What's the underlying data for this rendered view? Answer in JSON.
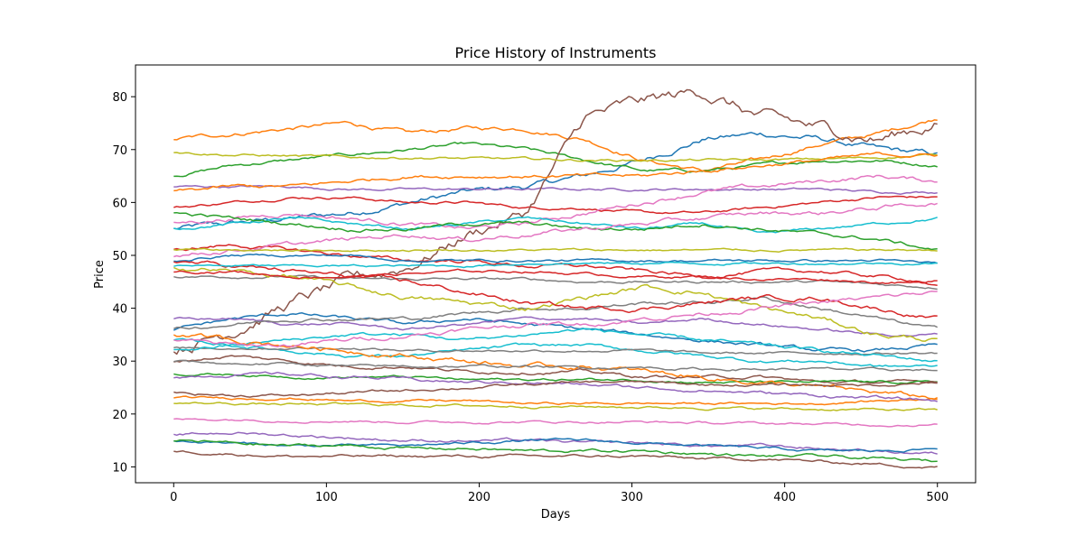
{
  "chart_data": {
    "type": "line",
    "title": "Price History of Instruments",
    "xlabel": "Days",
    "ylabel": "Price",
    "xlim": [
      -25,
      525
    ],
    "ylim": [
      7,
      86
    ],
    "xticks": [
      0,
      100,
      200,
      300,
      400,
      500
    ],
    "yticks": [
      10,
      20,
      30,
      40,
      50,
      60,
      70,
      80
    ],
    "x_start": 0,
    "x_end": 500,
    "grid": false,
    "legend": "none",
    "palette": [
      "#1f77b4",
      "#ff7f0e",
      "#2ca02c",
      "#d62728",
      "#9467bd",
      "#8c564b",
      "#e377c2",
      "#7f7f7f",
      "#bcbd22",
      "#17becf"
    ],
    "series": [
      {
        "color": "#1f77b4",
        "values": [
          55,
          56,
          57,
          58,
          60,
          62,
          63,
          65,
          68,
          72,
          73,
          72,
          70,
          69
        ]
      },
      {
        "color": "#ff7f0e",
        "values": [
          72,
          73,
          74,
          75,
          73,
          74,
          74,
          72,
          68,
          66,
          68,
          71,
          73,
          76
        ]
      },
      {
        "color": "#2ca02c",
        "values": [
          65,
          67,
          68,
          69,
          70,
          71,
          70,
          68,
          66,
          66,
          67,
          68,
          68,
          67
        ]
      },
      {
        "color": "#d62728",
        "values": [
          59,
          60,
          61,
          61,
          60,
          60,
          59,
          59,
          58,
          58,
          59,
          60,
          61,
          61
        ]
      },
      {
        "color": "#9467bd",
        "values": [
          63,
          63,
          63,
          62.5,
          62.5,
          62.5,
          62.5,
          62.5,
          62.5,
          62.5,
          62.5,
          62.5,
          62,
          62
        ]
      },
      {
        "color": "#8c564b",
        "values": [
          32,
          36,
          41,
          45,
          48,
          54,
          58,
          76,
          79,
          81,
          76,
          74,
          72,
          75
        ]
      },
      {
        "color": "#e377c2",
        "values": [
          56,
          57,
          58,
          57,
          56,
          55,
          56,
          58,
          60,
          62,
          63,
          64,
          65,
          64
        ]
      },
      {
        "color": "#7f7f7f",
        "values": [
          46,
          46,
          46,
          45.5,
          45.5,
          45.5,
          45.5,
          45,
          45,
          45,
          45,
          45,
          44.5,
          44
        ]
      },
      {
        "color": "#bcbd22",
        "values": [
          69.5,
          69,
          68.8,
          68.5,
          68.5,
          68.3,
          68.2,
          68,
          68,
          68,
          68,
          68.2,
          68.5,
          69
        ]
      },
      {
        "color": "#17becf",
        "values": [
          55,
          56,
          57,
          56,
          55,
          56,
          57,
          56,
          55,
          56,
          54,
          55,
          56,
          57
        ]
      },
      {
        "color": "#1f77b4",
        "values": [
          36,
          38,
          39,
          38,
          37,
          38,
          37,
          36,
          35,
          34,
          33,
          32,
          32,
          33
        ]
      },
      {
        "color": "#ff7f0e",
        "values": [
          62,
          63,
          63,
          64,
          65,
          65,
          65,
          65,
          65,
          66,
          67,
          68,
          69,
          69
        ]
      },
      {
        "color": "#2ca02c",
        "values": [
          58,
          57,
          56,
          55,
          55,
          56,
          56,
          55,
          55,
          56,
          55,
          54,
          53,
          51
        ]
      },
      {
        "color": "#d62728",
        "values": [
          51,
          52,
          51,
          50,
          49,
          49,
          48,
          48,
          47,
          46,
          47,
          47,
          46,
          45
        ]
      },
      {
        "color": "#9467bd",
        "values": [
          38,
          38,
          37,
          37,
          36,
          37,
          38,
          38,
          37,
          38,
          37,
          36,
          35,
          35
        ]
      },
      {
        "color": "#8c564b",
        "values": [
          30,
          31,
          30,
          29,
          29,
          28,
          28,
          28,
          27,
          27,
          27,
          26,
          26,
          26
        ]
      },
      {
        "color": "#e377c2",
        "values": [
          50,
          51,
          52,
          53,
          54,
          53,
          54,
          55,
          56,
          57,
          58,
          58,
          59,
          60
        ]
      },
      {
        "color": "#7f7f7f",
        "values": [
          36,
          37,
          38,
          38,
          38,
          39,
          40,
          40,
          41,
          41,
          42,
          40,
          38,
          36
        ]
      },
      {
        "color": "#bcbd22",
        "values": [
          48,
          47,
          46,
          44,
          42,
          41,
          40,
          42,
          44,
          43,
          40,
          38,
          35,
          34
        ]
      },
      {
        "color": "#17becf",
        "values": [
          34,
          33,
          32,
          31,
          31,
          32,
          33,
          33,
          32,
          31,
          30,
          30,
          29,
          29
        ]
      },
      {
        "color": "#1f77b4",
        "values": [
          49,
          50,
          50,
          50,
          49,
          49,
          49,
          49,
          49,
          49,
          49,
          49,
          49,
          48.5
        ]
      },
      {
        "color": "#ff7f0e",
        "values": [
          23,
          23,
          23,
          22.5,
          22.5,
          22.5,
          22,
          22,
          22,
          22,
          22,
          22,
          22.5,
          23
        ]
      },
      {
        "color": "#2ca02c",
        "values": [
          27.5,
          27.5,
          27,
          27,
          27,
          26.5,
          26.5,
          26.5,
          26.5,
          26,
          26,
          26,
          26,
          26
        ]
      },
      {
        "color": "#d62728",
        "values": [
          49,
          48,
          47,
          46,
          45,
          43,
          41,
          40,
          40,
          41,
          42,
          42,
          40,
          38
        ]
      },
      {
        "color": "#9467bd",
        "values": [
          16,
          16.5,
          16,
          15.5,
          15,
          15,
          15,
          14.5,
          14.5,
          14,
          14,
          13.5,
          13,
          12.5
        ]
      },
      {
        "color": "#8c564b",
        "values": [
          13,
          12.5,
          12,
          12,
          12,
          12,
          12,
          12,
          12,
          11.5,
          11.5,
          11,
          10.5,
          10
        ]
      },
      {
        "color": "#e377c2",
        "values": [
          19,
          19,
          18.8,
          18.7,
          18.5,
          18.5,
          18.5,
          18.5,
          18.5,
          18.3,
          18.2,
          18.1,
          18,
          18
        ]
      },
      {
        "color": "#7f7f7f",
        "values": [
          32.5,
          32.5,
          32.5,
          32.5,
          32,
          32,
          32,
          32,
          32,
          31.5,
          31.5,
          31.5,
          31.5,
          31.5
        ]
      },
      {
        "color": "#bcbd22",
        "values": [
          22,
          22,
          21.8,
          21.8,
          21.7,
          21.6,
          21.5,
          21.4,
          21.3,
          21.2,
          21,
          20.9,
          20.8,
          20.7
        ]
      },
      {
        "color": "#17becf",
        "values": [
          32,
          33,
          34,
          35,
          35,
          34,
          35,
          36,
          35,
          34,
          33,
          32,
          31,
          30
        ]
      },
      {
        "color": "#1f77b4",
        "values": [
          15,
          14.5,
          14,
          14,
          14,
          14.5,
          15,
          15,
          14.5,
          14,
          13.5,
          13,
          13,
          13.5
        ]
      },
      {
        "color": "#ff7f0e",
        "values": [
          35,
          34,
          33,
          32,
          31,
          30,
          29,
          29,
          28,
          27,
          26,
          25,
          24,
          23
        ]
      },
      {
        "color": "#2ca02c",
        "values": [
          15,
          14.5,
          14,
          14,
          13.5,
          13.5,
          13,
          13,
          13,
          12.5,
          12,
          12,
          11.5,
          11
        ]
      },
      {
        "color": "#d62728",
        "values": [
          47,
          47,
          46,
          46,
          46.5,
          47,
          47,
          46.5,
          46,
          46,
          45.5,
          45.5,
          45,
          44.5
        ]
      },
      {
        "color": "#9467bd",
        "values": [
          27,
          27.5,
          27.5,
          27,
          26.5,
          26,
          26,
          25.5,
          25,
          24.5,
          24,
          23.5,
          23,
          22.5
        ]
      },
      {
        "color": "#8c564b",
        "values": [
          24,
          23.5,
          23.5,
          24,
          24.5,
          25,
          25.5,
          26,
          26,
          25.5,
          25.5,
          25.5,
          25.5,
          26
        ]
      },
      {
        "color": "#e377c2",
        "values": [
          34,
          33,
          33,
          34,
          35,
          36,
          37,
          37,
          38,
          39,
          40,
          41,
          42,
          43
        ]
      },
      {
        "color": "#7f7f7f",
        "values": [
          30,
          29.5,
          29.5,
          29,
          29,
          29,
          29,
          28.8,
          28.8,
          28.5,
          28.5,
          28.5,
          28.3,
          28.3
        ]
      },
      {
        "color": "#bcbd22",
        "values": [
          51,
          51,
          51,
          51,
          51,
          51,
          51,
          51,
          51,
          51,
          51,
          51,
          51,
          51
        ]
      },
      {
        "color": "#17becf",
        "values": [
          48,
          48,
          48,
          48,
          48,
          48,
          48.5,
          48.5,
          48.5,
          48.5,
          48.5,
          48.5,
          48.5,
          48.5
        ]
      }
    ]
  }
}
